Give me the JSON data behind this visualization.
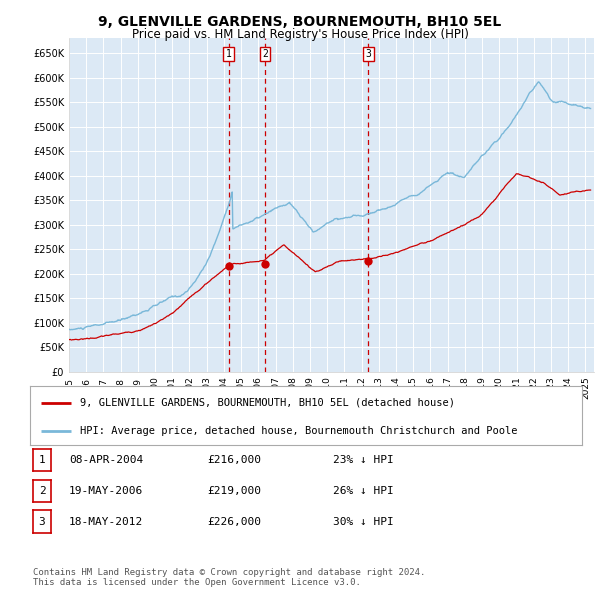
{
  "title": "9, GLENVILLE GARDENS, BOURNEMOUTH, BH10 5EL",
  "subtitle": "Price paid vs. HM Land Registry's House Price Index (HPI)",
  "title_fontsize": 10,
  "subtitle_fontsize": 8.5,
  "plot_bg_color": "#dce9f5",
  "hpi_line_color": "#7ab8d9",
  "price_line_color": "#cc0000",
  "marker_color": "#cc0000",
  "vline_color": "#cc0000",
  "grid_color": "#ffffff",
  "ylim": [
    0,
    680000
  ],
  "yticks": [
    0,
    50000,
    100000,
    150000,
    200000,
    250000,
    300000,
    350000,
    400000,
    450000,
    500000,
    550000,
    600000,
    650000
  ],
  "ytick_labels": [
    "£0",
    "£50K",
    "£100K",
    "£150K",
    "£200K",
    "£250K",
    "£300K",
    "£350K",
    "£400K",
    "£450K",
    "£500K",
    "£550K",
    "£600K",
    "£650K"
  ],
  "xlim_start": 1995.0,
  "xlim_end": 2025.5,
  "xtick_years": [
    1995,
    1996,
    1997,
    1998,
    1999,
    2000,
    2001,
    2002,
    2003,
    2004,
    2005,
    2006,
    2007,
    2008,
    2009,
    2010,
    2011,
    2012,
    2013,
    2014,
    2015,
    2016,
    2017,
    2018,
    2019,
    2020,
    2021,
    2022,
    2023,
    2024,
    2025
  ],
  "sale_dates": [
    2004.27,
    2006.38,
    2012.38
  ],
  "sale_prices": [
    216000,
    219000,
    226000
  ],
  "sale_labels": [
    "1",
    "2",
    "3"
  ],
  "legend_line1": "9, GLENVILLE GARDENS, BOURNEMOUTH, BH10 5EL (detached house)",
  "legend_line2": "HPI: Average price, detached house, Bournemouth Christchurch and Poole",
  "table_rows": [
    {
      "num": "1",
      "date": "08-APR-2004",
      "price": "£216,000",
      "pct": "23% ↓ HPI"
    },
    {
      "num": "2",
      "date": "19-MAY-2006",
      "price": "£219,000",
      "pct": "26% ↓ HPI"
    },
    {
      "num": "3",
      "date": "18-MAY-2012",
      "price": "£226,000",
      "pct": "30% ↓ HPI"
    }
  ],
  "footnote": "Contains HM Land Registry data © Crown copyright and database right 2024.\nThis data is licensed under the Open Government Licence v3.0.",
  "footnote_fontsize": 6.5
}
